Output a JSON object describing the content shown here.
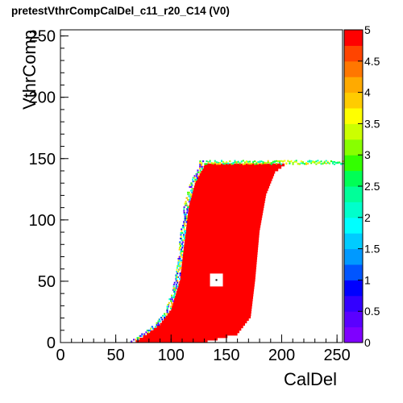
{
  "chart_data": {
    "type": "heatmap",
    "title": "pretestVthrCompCalDel_c11_r20_C14 (V0)",
    "xlabel": "CalDel",
    "ylabel": "VthrComp",
    "xlim": [
      0,
      255
    ],
    "ylim": [
      0,
      255
    ],
    "x_ticks": [
      "0",
      "50",
      "100",
      "150",
      "200",
      "250"
    ],
    "y_ticks": [
      "0",
      "50",
      "100",
      "150",
      "200",
      "250"
    ],
    "z_range": [
      0,
      5
    ],
    "z_ticks": [
      "0",
      "0.5",
      "1",
      "1.5",
      "2",
      "2.5",
      "3",
      "3.5",
      "4",
      "4.5",
      "5"
    ],
    "palette": [
      "#7F00FF",
      "#5A00FF",
      "#3300FF",
      "#0000FF",
      "#0055FF",
      "#0099FF",
      "#00CCFF",
      "#00FFFF",
      "#00FFCC",
      "#00FF99",
      "#00FF55",
      "#33FF00",
      "#88FF00",
      "#CCFF00",
      "#FFFF00",
      "#FFCC00",
      "#FFAA00",
      "#FF7700",
      "#FF4400",
      "#FF0000"
    ],
    "fill_value": 5,
    "region": {
      "description_points_left": [
        [
          68,
          0
        ],
        [
          78,
          6
        ],
        [
          90,
          14
        ],
        [
          100,
          26
        ],
        [
          108,
          50
        ],
        [
          112,
          80
        ],
        [
          116,
          110
        ],
        [
          122,
          130
        ],
        [
          130,
          143
        ]
      ],
      "description_points_right": [
        [
          133,
          0
        ],
        [
          160,
          6
        ],
        [
          172,
          20
        ],
        [
          176,
          50
        ],
        [
          180,
          90
        ],
        [
          186,
          120
        ],
        [
          194,
          138
        ],
        [
          204,
          145
        ],
        [
          255,
          147
        ]
      ],
      "top_plateau": 145
    },
    "hole": {
      "x": 141,
      "y": 51,
      "value": 0
    }
  }
}
